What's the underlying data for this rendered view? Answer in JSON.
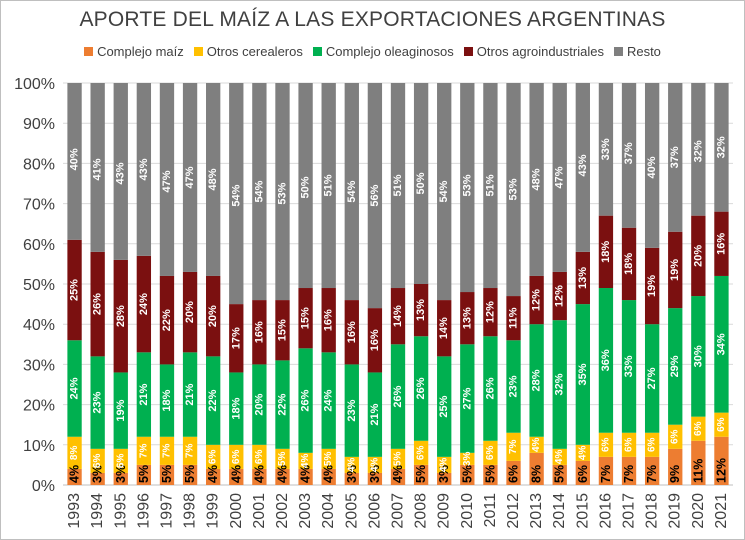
{
  "colors": {
    "complejo_maiz": "#ed7d31",
    "otros_cerealeros": "#ffc000",
    "complejo_oleaginosos": "#00b050",
    "otros_agroindustriales": "#7b1010",
    "resto": "#7f7f7f",
    "label_dark": "#000000",
    "label_light": "#ffffff",
    "grid": "#d9d9d9",
    "text": "#404040"
  },
  "chart_data": {
    "type": "bar",
    "stacked": true,
    "title": "APORTE DEL MAÍZ A LAS EXPORTACIONES ARGENTINAS",
    "xlabel": "",
    "ylabel": "",
    "ylim": [
      0,
      100
    ],
    "y_ticks": [
      "0%",
      "10%",
      "20%",
      "30%",
      "40%",
      "50%",
      "60%",
      "70%",
      "80%",
      "90%",
      "100%"
    ],
    "grid": true,
    "legend_position": "top",
    "categories": [
      "1993",
      "1994",
      "1995",
      "1996",
      "1997",
      "1998",
      "1999",
      "2000",
      "2001",
      "2002",
      "2003",
      "2004",
      "2005",
      "2006",
      "2007",
      "2008",
      "2009",
      "2010",
      "2011",
      "2012",
      "2013",
      "2014",
      "2015",
      "2016",
      "2017",
      "2018",
      "2019",
      "2020",
      "2021"
    ],
    "series": [
      {
        "name": "Complejo maíz",
        "key": "complejo_maiz",
        "values": [
          4,
          3,
          3,
          5,
          5,
          5,
          4,
          4,
          4,
          4,
          4,
          4,
          3,
          3,
          4,
          5,
          3,
          5,
          5,
          6,
          8,
          5,
          6,
          7,
          7,
          7,
          9,
          11,
          12
        ],
        "labels": [
          "4%",
          "3%",
          "3%",
          "5%",
          "5%",
          "5%",
          "4%",
          "4%",
          "4%",
          "4%",
          "4%",
          "4%",
          "3%",
          "3%",
          "4%",
          "5%",
          "3%",
          "5%",
          "5%",
          "6%",
          "8%",
          "5%",
          "6%",
          "7%",
          "7%",
          "7%",
          "9%",
          "11%",
          "12%"
        ]
      },
      {
        "name": "Otros cerealeros",
        "key": "otros_cerealeros",
        "values": [
          8,
          6,
          6,
          7,
          7,
          7,
          6,
          6,
          6,
          5,
          4,
          5,
          4,
          4,
          5,
          6,
          4,
          3,
          6,
          7,
          4,
          4,
          4,
          6,
          6,
          6,
          6,
          6,
          6
        ],
        "labels": [
          "8%",
          "6%",
          "6%",
          "7%",
          "7%",
          "7%",
          "6%",
          "6%",
          "6%",
          "5%",
          "4%",
          "5%",
          "4%",
          "4%",
          "5%",
          "6%",
          "4%",
          "3%",
          "6%",
          "7%",
          "4%",
          "4%",
          "4%",
          "6%",
          "6%",
          "6%",
          "6%",
          "6%",
          "6%"
        ]
      },
      {
        "name": "Complejo oleaginosos",
        "key": "complejo_oleaginosos",
        "values": [
          24,
          23,
          19,
          21,
          18,
          21,
          22,
          18,
          20,
          22,
          26,
          24,
          23,
          21,
          26,
          26,
          25,
          27,
          26,
          23,
          28,
          32,
          35,
          36,
          33,
          27,
          29,
          30,
          34
        ],
        "labels": [
          "24%",
          "23%",
          "19%",
          "21%",
          "18%",
          "21%",
          "22%",
          "18%",
          "20%",
          "22%",
          "26%",
          "24%",
          "23%",
          "21%",
          "26%",
          "26%",
          "25%",
          "27%",
          "26%",
          "23%",
          "28%",
          "32%",
          "35%",
          "36%",
          "33%",
          "27%",
          "29%",
          "30%",
          "34%"
        ]
      },
      {
        "name": "Otros agroindustriales",
        "key": "otros_agroindustriales",
        "values": [
          25,
          26,
          28,
          24,
          22,
          20,
          20,
          17,
          16,
          15,
          15,
          16,
          16,
          16,
          14,
          13,
          14,
          13,
          12,
          11,
          12,
          12,
          13,
          18,
          18,
          19,
          19,
          20,
          16
        ],
        "labels": [
          "25%",
          "26%",
          "28%",
          "24%",
          "22%",
          "20%",
          "20%",
          "17%",
          "16%",
          "15%",
          "15%",
          "16%",
          "16%",
          "16%",
          "14%",
          "13%",
          "14%",
          "13%",
          "12%",
          "11%",
          "12%",
          "12%",
          "13%",
          "18%",
          "18%",
          "19%",
          "19%",
          "20%",
          "16%"
        ]
      },
      {
        "name": "Resto",
        "key": "resto",
        "values": [
          40,
          41,
          43,
          43,
          47,
          47,
          48,
          54,
          54,
          53,
          50,
          51,
          54,
          56,
          51,
          50,
          54,
          53,
          51,
          53,
          48,
          47,
          43,
          33,
          37,
          40,
          37,
          32,
          32
        ],
        "labels": [
          "40%",
          "41%",
          "43%",
          "43%",
          "47%",
          "47%",
          "48%",
          "54%",
          "54%",
          "53%",
          "50%",
          "51%",
          "54%",
          "56%",
          "51%",
          "50%",
          "54%",
          "53%",
          "51%",
          "53%",
          "48%",
          "47%",
          "43%",
          "33%",
          "37%",
          "40%",
          "37%",
          "32%",
          "32%"
        ]
      }
    ]
  }
}
